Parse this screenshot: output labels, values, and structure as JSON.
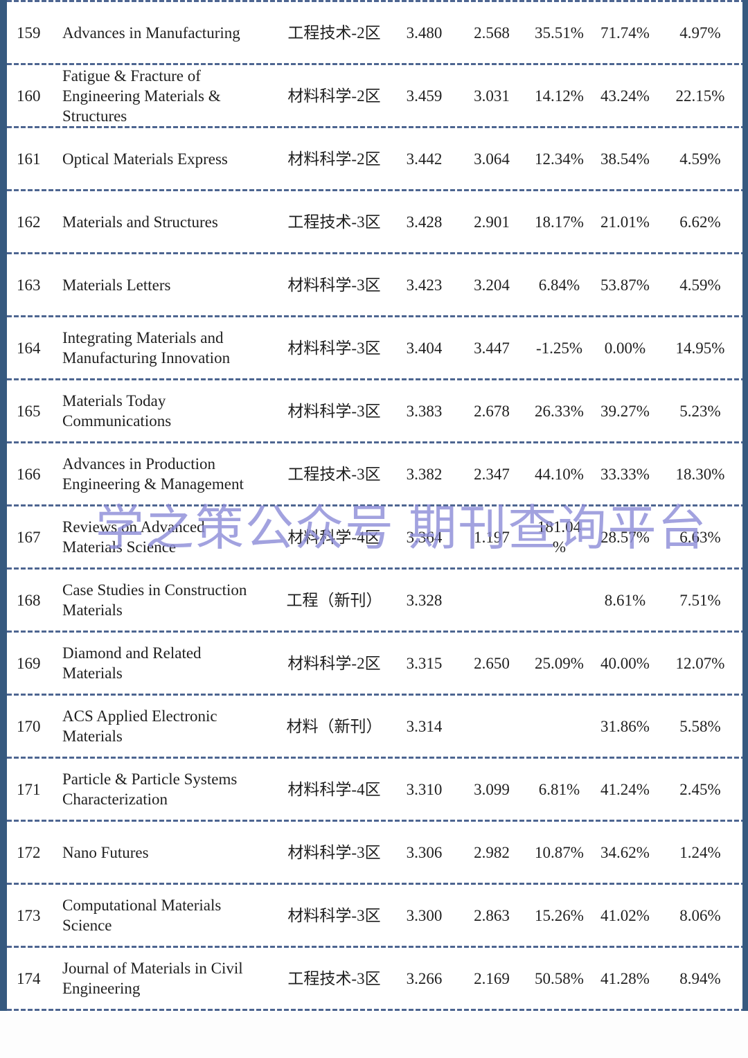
{
  "watermark": {
    "text": "学之策公众号 期刊查询平台",
    "color": "#8c8cd8"
  },
  "table": {
    "border_color": "#36597f",
    "divider_color": "#4e6691",
    "rows": [
      {
        "rank": "159",
        "name": "Advances in Manufacturing",
        "category": "工程技术-2区",
        "value1": "3.480",
        "value2": "2.568",
        "percent1": "35.51%",
        "percent2": "71.74%",
        "percent3": "4.97%"
      },
      {
        "rank": "160",
        "name": "Fatigue & Fracture of Engineering Materials & Structures",
        "category": "材料科学-2区",
        "value1": "3.459",
        "value2": "3.031",
        "percent1": "14.12%",
        "percent2": "43.24%",
        "percent3": "22.15%"
      },
      {
        "rank": "161",
        "name": "Optical Materials Express",
        "category": "材料科学-2区",
        "value1": "3.442",
        "value2": "3.064",
        "percent1": "12.34%",
        "percent2": "38.54%",
        "percent3": "4.59%"
      },
      {
        "rank": "162",
        "name": "Materials and Structures",
        "category": "工程技术-3区",
        "value1": "3.428",
        "value2": "2.901",
        "percent1": "18.17%",
        "percent2": "21.01%",
        "percent3": "6.62%"
      },
      {
        "rank": "163",
        "name": "Materials Letters",
        "category": "材料科学-3区",
        "value1": "3.423",
        "value2": "3.204",
        "percent1": "6.84%",
        "percent2": "53.87%",
        "percent3": "4.59%"
      },
      {
        "rank": "164",
        "name": "Integrating Materials and Manufacturing Innovation",
        "category": "材料科学-3区",
        "value1": "3.404",
        "value2": "3.447",
        "percent1": "-1.25%",
        "percent2": "0.00%",
        "percent3": "14.95%"
      },
      {
        "rank": "165",
        "name": "Materials Today Communications",
        "category": "材料科学-3区",
        "value1": "3.383",
        "value2": "2.678",
        "percent1": "26.33%",
        "percent2": "39.27%",
        "percent3": "5.23%"
      },
      {
        "rank": "166",
        "name": "Advances in Production Engineering & Management",
        "category": "工程技术-3区",
        "value1": "3.382",
        "value2": "2.347",
        "percent1": "44.10%",
        "percent2": "33.33%",
        "percent3": "18.30%"
      },
      {
        "rank": "167",
        "name": "Reviews on Advanced Materials Science",
        "category": "材料科学-4区",
        "value1": "3.364",
        "value2": "1.197",
        "percent1": "181.04\n%",
        "percent2": "28.57%",
        "percent3": "6.63%"
      },
      {
        "rank": "168",
        "name": "Case Studies in Construction Materials",
        "category": "工程（新刊）",
        "value1": "3.328",
        "value2": "",
        "percent1": "",
        "percent2": "8.61%",
        "percent3": "7.51%"
      },
      {
        "rank": "169",
        "name": "Diamond and Related Materials",
        "category": "材料科学-2区",
        "value1": "3.315",
        "value2": "2.650",
        "percent1": "25.09%",
        "percent2": "40.00%",
        "percent3": "12.07%"
      },
      {
        "rank": "170",
        "name": "ACS Applied Electronic Materials",
        "category": "材料（新刊）",
        "value1": "3.314",
        "value2": "",
        "percent1": "",
        "percent2": "31.86%",
        "percent3": "5.58%"
      },
      {
        "rank": "171",
        "name": "Particle & Particle Systems Characterization",
        "category": "材料科学-4区",
        "value1": "3.310",
        "value2": "3.099",
        "percent1": "6.81%",
        "percent2": "41.24%",
        "percent3": "2.45%"
      },
      {
        "rank": "172",
        "name": "Nano Futures",
        "category": "材料科学-3区",
        "value1": "3.306",
        "value2": "2.982",
        "percent1": "10.87%",
        "percent2": "34.62%",
        "percent3": "1.24%"
      },
      {
        "rank": "173",
        "name": "Computational Materials Science",
        "category": "材料科学-3区",
        "value1": "3.300",
        "value2": "2.863",
        "percent1": "15.26%",
        "percent2": "41.02%",
        "percent3": "8.06%"
      },
      {
        "rank": "174",
        "name": "Journal of Materials in Civil Engineering",
        "category": "工程技术-3区",
        "value1": "3.266",
        "value2": "2.169",
        "percent1": "50.58%",
        "percent2": "41.28%",
        "percent3": "8.94%"
      }
    ]
  }
}
